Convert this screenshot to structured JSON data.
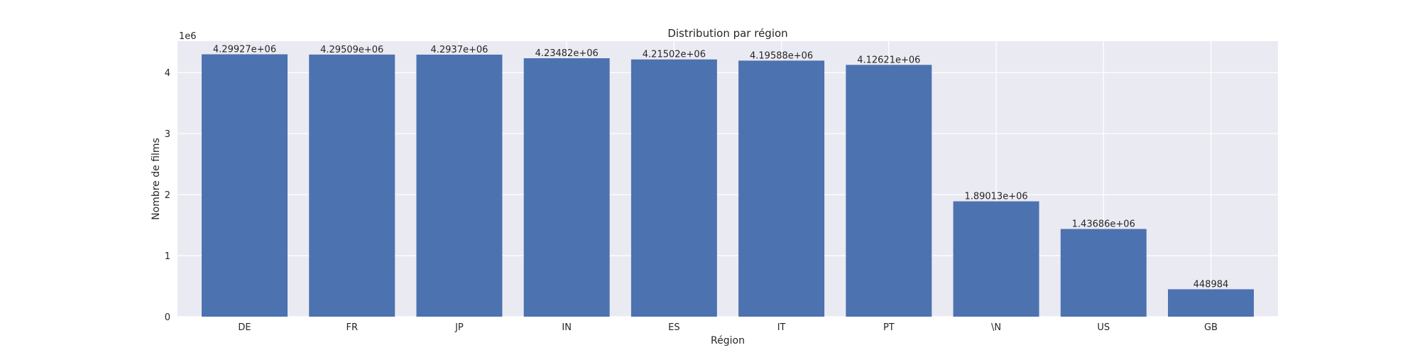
{
  "chart_data": {
    "type": "bar",
    "title": "Distribution par région",
    "xlabel": "Région",
    "ylabel": "Nombre de films",
    "y_offset_label": "1e6",
    "categories": [
      "DE",
      "FR",
      "JP",
      "IN",
      "ES",
      "IT",
      "PT",
      "\\N",
      "US",
      "GB"
    ],
    "values": [
      4299270,
      4295090,
      4293700,
      4234820,
      4215020,
      4195880,
      4126210,
      1890130,
      1436860,
      448984
    ],
    "data_labels": [
      "4.29927e+06",
      "4.29509e+06",
      "4.2937e+06",
      "4.23482e+06",
      "4.21502e+06",
      "4.19588e+06",
      "4.12621e+06",
      "1.89013e+06",
      "1.43686e+06",
      "448984"
    ],
    "yticks": [
      0,
      1,
      2,
      3,
      4
    ],
    "ylim": [
      0,
      4514233
    ],
    "grid": true,
    "bar_color": "#4c72b0",
    "background_color": "#eaeaf2"
  }
}
